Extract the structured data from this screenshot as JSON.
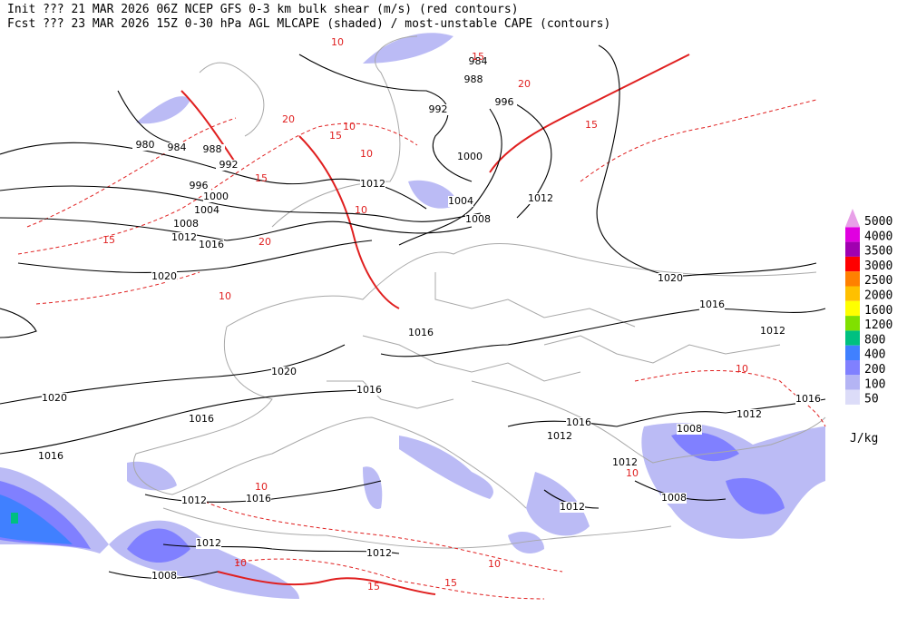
{
  "header": {
    "line1": "Init  ??? 21 MAR 2026 06Z  NCEP GFS 0-3 km bulk shear (m/s) (red contours)",
    "line2": "Fcst ??? 23 MAR 2026 15Z  0-30 hPa AGL MLCAPE (shaded) / most-unstable CAPE (contours)"
  },
  "isobar_labels": [
    "984",
    "988",
    "992",
    "996",
    "1000",
    "1004",
    "1008",
    "1012",
    "980",
    "984",
    "988",
    "992",
    "996",
    "1000",
    "1004",
    "1008",
    "1012",
    "1016",
    "1020",
    "1012",
    "1020",
    "1016",
    "1012",
    "1016",
    "1020",
    "1016",
    "1016",
    "1020",
    "1016",
    "1016",
    "1012",
    "1012",
    "1016",
    "1008",
    "1012",
    "1008",
    "1012",
    "1012",
    "1016",
    "1012",
    "1012",
    "1008"
  ],
  "shear_labels": [
    "10",
    "15",
    "20",
    "15",
    "10",
    "20",
    "15",
    "10",
    "15",
    "10",
    "20",
    "15",
    "10",
    "10",
    "15",
    "10",
    "10",
    "15",
    "10",
    "10"
  ],
  "legend": {
    "levels": [
      5000,
      4000,
      3500,
      3000,
      2500,
      2000,
      1600,
      1200,
      800,
      400,
      200,
      100,
      50
    ],
    "colors": [
      "#e8a0e8",
      "#e000e0",
      "#a000b0",
      "#ff0000",
      "#ff8000",
      "#ffc000",
      "#ffff00",
      "#80e000",
      "#00c080",
      "#4080ff",
      "#8080ff",
      "#b4b4f4",
      "#dcdcf8"
    ],
    "unit": "J/kg"
  }
}
